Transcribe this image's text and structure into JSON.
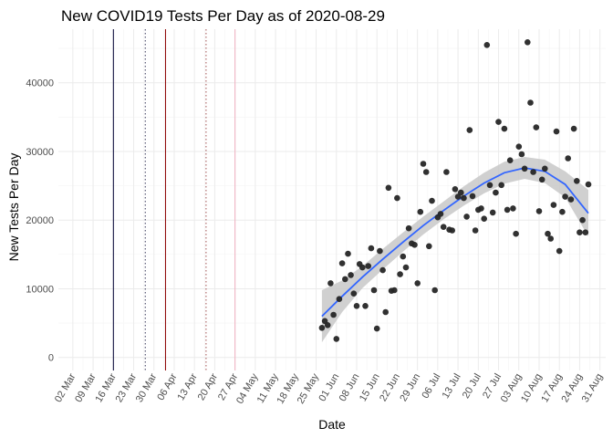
{
  "chart_data": {
    "type": "scatter",
    "title": "New COVID19 Tests Per Day as of 2020-08-29",
    "xlabel": "Date",
    "ylabel": "New Tests Per Day",
    "x_ticks": [
      "02 Mar",
      "09 Mar",
      "16 Mar",
      "23 Mar",
      "30 Mar",
      "06 Apr",
      "13 Apr",
      "20 Apr",
      "27 Apr",
      "04 May",
      "11 May",
      "18 May",
      "25 May",
      "01 Jun",
      "08 Jun",
      "15 Jun",
      "22 Jun",
      "29 Jun",
      "06 Jul",
      "13 Jul",
      "20 Jul",
      "27 Jul",
      "03 Aug",
      "10 Aug",
      "17 Aug",
      "24 Aug",
      "31 Aug"
    ],
    "y_ticks": [
      "0",
      "10000",
      "20000",
      "30000",
      "40000"
    ],
    "xlim": [
      "2020-02-26",
      "2020-09-02"
    ],
    "ylim": [
      -1900,
      47800
    ],
    "grid": true,
    "colors": {
      "points": "#262626",
      "smooth_line": "#3366ff",
      "smooth_band": "#c8c8c8",
      "grid_major": "#ebebeb",
      "grid_minor": "#f4f4f4"
    },
    "vlines": [
      {
        "date": "2020-03-16",
        "color": "#000033",
        "style": "solid"
      },
      {
        "date": "2020-03-27",
        "color": "#333355",
        "style": "dotted"
      },
      {
        "date": "2020-04-03",
        "color": "#8b0000",
        "style": "solid"
      },
      {
        "date": "2020-04-17",
        "color": "#a05050",
        "style": "dotted"
      },
      {
        "date": "2020-04-27",
        "color": "#f0b0c0",
        "style": "solid"
      }
    ],
    "points": [
      {
        "date": "2020-05-27",
        "y": 4300
      },
      {
        "date": "2020-05-28",
        "y": 5300
      },
      {
        "date": "2020-05-29",
        "y": 4700
      },
      {
        "date": "2020-05-30",
        "y": 10800
      },
      {
        "date": "2020-05-31",
        "y": 6200
      },
      {
        "date": "2020-06-01",
        "y": 2700
      },
      {
        "date": "2020-06-02",
        "y": 8500
      },
      {
        "date": "2020-06-03",
        "y": 13700
      },
      {
        "date": "2020-06-04",
        "y": 11400
      },
      {
        "date": "2020-06-05",
        "y": 15100
      },
      {
        "date": "2020-06-06",
        "y": 12000
      },
      {
        "date": "2020-06-07",
        "y": 9300
      },
      {
        "date": "2020-06-08",
        "y": 7500
      },
      {
        "date": "2020-06-09",
        "y": 13600
      },
      {
        "date": "2020-06-10",
        "y": 13100
      },
      {
        "date": "2020-06-11",
        "y": 7500
      },
      {
        "date": "2020-06-12",
        "y": 13300
      },
      {
        "date": "2020-06-13",
        "y": 15900
      },
      {
        "date": "2020-06-14",
        "y": 9800
      },
      {
        "date": "2020-06-15",
        "y": 4200
      },
      {
        "date": "2020-06-16",
        "y": 15500
      },
      {
        "date": "2020-06-17",
        "y": 12700
      },
      {
        "date": "2020-06-18",
        "y": 6600
      },
      {
        "date": "2020-06-19",
        "y": 24700
      },
      {
        "date": "2020-06-20",
        "y": 9700
      },
      {
        "date": "2020-06-21",
        "y": 9800
      },
      {
        "date": "2020-06-22",
        "y": 23200
      },
      {
        "date": "2020-06-23",
        "y": 12100
      },
      {
        "date": "2020-06-24",
        "y": 14700
      },
      {
        "date": "2020-06-25",
        "y": 13100
      },
      {
        "date": "2020-06-26",
        "y": 18800
      },
      {
        "date": "2020-06-27",
        "y": 16600
      },
      {
        "date": "2020-06-28",
        "y": 16400
      },
      {
        "date": "2020-06-29",
        "y": 10800
      },
      {
        "date": "2020-06-30",
        "y": 21200
      },
      {
        "date": "2020-07-01",
        "y": 28200
      },
      {
        "date": "2020-07-02",
        "y": 27000
      },
      {
        "date": "2020-07-03",
        "y": 16200
      },
      {
        "date": "2020-07-04",
        "y": 22800
      },
      {
        "date": "2020-07-05",
        "y": 9800
      },
      {
        "date": "2020-07-06",
        "y": 20400
      },
      {
        "date": "2020-07-07",
        "y": 20900
      },
      {
        "date": "2020-07-08",
        "y": 19000
      },
      {
        "date": "2020-07-09",
        "y": 27000
      },
      {
        "date": "2020-07-10",
        "y": 18600
      },
      {
        "date": "2020-07-11",
        "y": 18500
      },
      {
        "date": "2020-07-12",
        "y": 24500
      },
      {
        "date": "2020-07-13",
        "y": 23400
      },
      {
        "date": "2020-07-14",
        "y": 24000
      },
      {
        "date": "2020-07-15",
        "y": 23200
      },
      {
        "date": "2020-07-16",
        "y": 20500
      },
      {
        "date": "2020-07-17",
        "y": 33100
      },
      {
        "date": "2020-07-18",
        "y": 23500
      },
      {
        "date": "2020-07-19",
        "y": 18500
      },
      {
        "date": "2020-07-20",
        "y": 21500
      },
      {
        "date": "2020-07-21",
        "y": 21700
      },
      {
        "date": "2020-07-22",
        "y": 20200
      },
      {
        "date": "2020-07-23",
        "y": 45500
      },
      {
        "date": "2020-07-24",
        "y": 25100
      },
      {
        "date": "2020-07-25",
        "y": 21100
      },
      {
        "date": "2020-07-26",
        "y": 24000
      },
      {
        "date": "2020-07-27",
        "y": 34300
      },
      {
        "date": "2020-07-28",
        "y": 25100
      },
      {
        "date": "2020-07-29",
        "y": 33300
      },
      {
        "date": "2020-07-30",
        "y": 21500
      },
      {
        "date": "2020-07-31",
        "y": 28700
      },
      {
        "date": "2020-08-01",
        "y": 21700
      },
      {
        "date": "2020-08-02",
        "y": 18000
      },
      {
        "date": "2020-08-03",
        "y": 30700
      },
      {
        "date": "2020-08-04",
        "y": 29600
      },
      {
        "date": "2020-08-05",
        "y": 27500
      },
      {
        "date": "2020-08-06",
        "y": 45900
      },
      {
        "date": "2020-08-07",
        "y": 37100
      },
      {
        "date": "2020-08-08",
        "y": 27000
      },
      {
        "date": "2020-08-09",
        "y": 33500
      },
      {
        "date": "2020-08-10",
        "y": 21300
      },
      {
        "date": "2020-08-11",
        "y": 25900
      },
      {
        "date": "2020-08-12",
        "y": 27500
      },
      {
        "date": "2020-08-13",
        "y": 18000
      },
      {
        "date": "2020-08-14",
        "y": 17300
      },
      {
        "date": "2020-08-15",
        "y": 22200
      },
      {
        "date": "2020-08-16",
        "y": 32900
      },
      {
        "date": "2020-08-17",
        "y": 15500
      },
      {
        "date": "2020-08-18",
        "y": 21200
      },
      {
        "date": "2020-08-19",
        "y": 23400
      },
      {
        "date": "2020-08-20",
        "y": 29000
      },
      {
        "date": "2020-08-21",
        "y": 23000
      },
      {
        "date": "2020-08-22",
        "y": 33300
      },
      {
        "date": "2020-08-23",
        "y": 25700
      },
      {
        "date": "2020-08-24",
        "y": 18200
      },
      {
        "date": "2020-08-25",
        "y": 20000
      },
      {
        "date": "2020-08-26",
        "y": 18200
      },
      {
        "date": "2020-08-27",
        "y": 25200
      }
    ],
    "smooth": [
      {
        "date": "2020-05-27",
        "y": 6000,
        "lo": 2200,
        "hi": 9800
      },
      {
        "date": "2020-06-03",
        "y": 8900,
        "lo": 6600,
        "hi": 11200
      },
      {
        "date": "2020-06-10",
        "y": 11700,
        "lo": 10100,
        "hi": 13300
      },
      {
        "date": "2020-06-17",
        "y": 14300,
        "lo": 12800,
        "hi": 15800
      },
      {
        "date": "2020-06-24",
        "y": 16800,
        "lo": 15400,
        "hi": 18200
      },
      {
        "date": "2020-07-01",
        "y": 19200,
        "lo": 17900,
        "hi": 20500
      },
      {
        "date": "2020-07-08",
        "y": 21400,
        "lo": 20100,
        "hi": 22700
      },
      {
        "date": "2020-07-15",
        "y": 23500,
        "lo": 22100,
        "hi": 24900
      },
      {
        "date": "2020-07-22",
        "y": 25400,
        "lo": 23900,
        "hi": 26900
      },
      {
        "date": "2020-07-29",
        "y": 26900,
        "lo": 25300,
        "hi": 28500
      },
      {
        "date": "2020-08-05",
        "y": 27600,
        "lo": 26000,
        "hi": 29200
      },
      {
        "date": "2020-08-12",
        "y": 27100,
        "lo": 25400,
        "hi": 28800
      },
      {
        "date": "2020-08-19",
        "y": 25200,
        "lo": 23300,
        "hi": 27100
      },
      {
        "date": "2020-08-27",
        "y": 21000,
        "lo": 17600,
        "hi": 24400
      }
    ]
  }
}
